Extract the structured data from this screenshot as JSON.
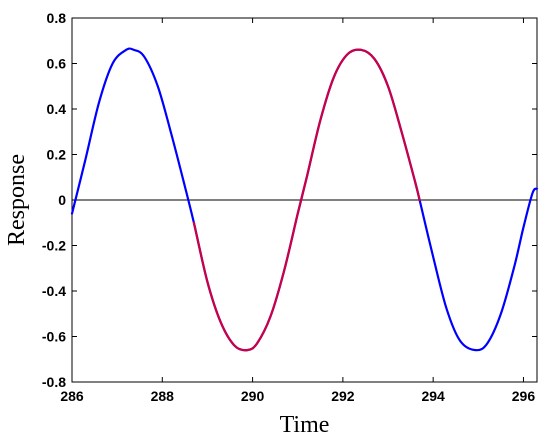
{
  "chart_data": {
    "type": "line",
    "title": "",
    "xlabel": "Time",
    "ylabel": "Response",
    "xlim": [
      286,
      296.3
    ],
    "ylim": [
      -0.8,
      0.8
    ],
    "x_ticks": [
      286,
      288,
      290,
      292,
      294,
      296
    ],
    "x_tick_labels": [
      "286",
      "288",
      "290",
      "292",
      "294",
      "296"
    ],
    "y_ticks": [
      0.8,
      0.6,
      0.4,
      0.2,
      0,
      -0.2,
      -0.4,
      -0.6,
      -0.8
    ],
    "y_tick_labels": [
      "0.8",
      "0.6",
      "0.4",
      "0.2",
      "0",
      "-0.2",
      "-0.4",
      "-0.6",
      "-0.8"
    ],
    "grid": false,
    "zero_line": true,
    "series": [
      {
        "color": "#0000ff",
        "x": [
          286.0,
          286.3,
          286.6,
          286.9,
          287.2,
          287.37,
          287.6,
          287.9,
          288.2,
          288.5,
          288.7,
          289.0,
          289.3,
          289.6,
          289.88,
          290.1,
          290.4,
          290.7,
          291.0,
          291.2,
          291.5,
          291.8,
          292.1,
          292.4,
          292.7,
          293.0,
          293.3,
          293.6,
          293.7,
          294.0,
          294.3,
          294.6,
          294.94,
          295.2,
          295.5,
          295.8,
          296.0,
          296.2,
          296.3
        ],
        "y": [
          -0.06,
          0.18,
          0.43,
          0.6,
          0.66,
          0.66,
          0.63,
          0.5,
          0.29,
          0.06,
          -0.1,
          -0.36,
          -0.54,
          -0.64,
          -0.66,
          -0.63,
          -0.51,
          -0.31,
          -0.06,
          0.1,
          0.35,
          0.54,
          0.64,
          0.66,
          0.62,
          0.5,
          0.3,
          0.08,
          0.0,
          -0.25,
          -0.48,
          -0.62,
          -0.66,
          -0.63,
          -0.5,
          -0.29,
          -0.12,
          0.03,
          0.05
        ]
      },
      {
        "color": "#cc0044",
        "x": [
          288.7,
          289.0,
          289.3,
          289.6,
          289.88,
          290.1,
          290.4,
          290.7,
          291.0,
          291.2,
          291.5,
          291.8,
          292.1,
          292.4,
          292.7,
          293.0,
          293.3,
          293.6,
          293.7
        ],
        "y": [
          -0.1,
          -0.36,
          -0.54,
          -0.64,
          -0.66,
          -0.63,
          -0.51,
          -0.31,
          -0.06,
          0.1,
          0.35,
          0.54,
          0.64,
          0.66,
          0.62,
          0.5,
          0.3,
          0.08,
          0.0
        ]
      }
    ]
  }
}
